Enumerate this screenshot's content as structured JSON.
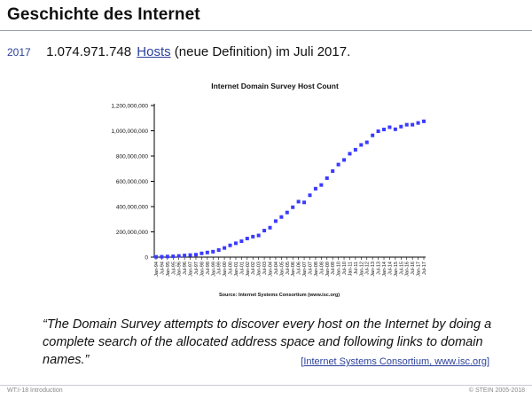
{
  "slide": {
    "title": "Geschichte des Internet",
    "year": "2017",
    "host_count": "1.074.971.748",
    "hosts_link": "Hosts",
    "fact_rest": "(neue Definition) im Juli 2017.",
    "quote": "“The Domain Survey attempts to discover every host on the Internet by doing a complete search of the allocated address space and following links to domain names.”",
    "citation_open": "[",
    "citation_link": "Internet Systems Consortium, www.isc.org",
    "citation_close": "]",
    "footer_left": "WT:I-18   Introduction",
    "footer_right": "© STEIN 2005-2018"
  },
  "colors": {
    "accent": "#2a3f9a",
    "series": "#3b3bff",
    "footer_text": "#888888"
  },
  "chart_data": {
    "type": "scatter",
    "title": "Internet Domain Survey Host Count",
    "source": "Source: Internet Systems Consortium (www.isc.org)",
    "ylim": [
      0,
      1200000000
    ],
    "ytick_labels": [
      "0",
      "200,000,000",
      "400,000,000",
      "600,000,000",
      "800,000,000",
      "1,000,000,000",
      "1,200,000,000"
    ],
    "ytick_values": [
      0,
      200000000,
      400000000,
      600000000,
      800000000,
      1000000000,
      1200000000
    ],
    "x": [
      "Jan-94",
      "Jul-94",
      "Jan-95",
      "Jul-95",
      "Jan-96",
      "Jul-96",
      "Jan-97",
      "Jul-97",
      "Jan-98",
      "Jul-98",
      "Jan-99",
      "Jul-99",
      "Jan-00",
      "Jul-00",
      "Jan-01",
      "Jul-01",
      "Jan-02",
      "Jul-02",
      "Jan-03",
      "Jul-03",
      "Jan-04",
      "Jul-04",
      "Jan-05",
      "Jul-05",
      "Jan-06",
      "Jul-06",
      "Jan-07",
      "Jul-07",
      "Jan-08",
      "Jul-08",
      "Jan-09",
      "Jul-09",
      "Jan-10",
      "Jul-10",
      "Jan-11",
      "Jul-11",
      "Jan-12",
      "Jul-12",
      "Jan-13",
      "Jul-13",
      "Jan-14",
      "Jul-14",
      "Jan-15",
      "Jul-15",
      "Jan-16",
      "Jul-16",
      "Jan-17",
      "Jul-17"
    ],
    "values": [
      2200000,
      3200000,
      4900000,
      6600000,
      9500000,
      12900000,
      16100000,
      19500000,
      29700000,
      36700000,
      43200000,
      56200000,
      72400000,
      93000000,
      109600000,
      125900000,
      147300000,
      162100000,
      171600000,
      210000000,
      233100000,
      285100000,
      317600000,
      353300000,
      394900000,
      439300000,
      433200000,
      489800000,
      541700000,
      570900000,
      625200000,
      681100000,
      732700000,
      769100000,
      818400000,
      849900000,
      888200000,
      908600000,
      963500000,
      996200000,
      1010300000,
      1028000000,
      1012000000,
      1033000000,
      1048000000,
      1048000000,
      1062000000,
      1074971748
    ]
  }
}
